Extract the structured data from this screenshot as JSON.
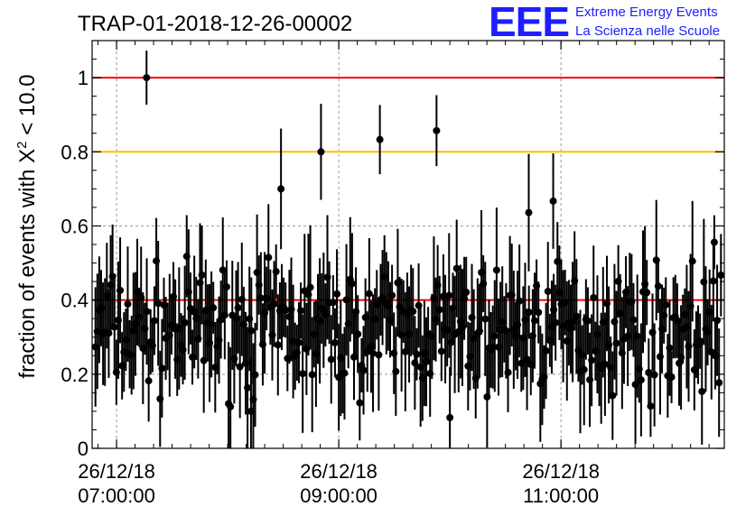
{
  "chart_data": {
    "type": "scatter",
    "title": "TRAP-01-2018-12-26-00002",
    "ylabel": {
      "pre": "fraction of events with ",
      "chi": "Χ",
      "sup": "2",
      "post": " < 10.0"
    },
    "xlabel": "",
    "x_range_hours": [
      6.78,
      12.47
    ],
    "ylim": [
      0,
      1.1
    ],
    "y_ticks": [
      {
        "value": 0,
        "label": "0"
      },
      {
        "value": 0.2,
        "label": "0.2"
      },
      {
        "value": 0.4,
        "label": "0.4"
      },
      {
        "value": 0.6,
        "label": "0.6"
      },
      {
        "value": 0.8,
        "label": "0.8"
      },
      {
        "value": 1.0,
        "label": "1"
      }
    ],
    "x_ticks": [
      {
        "value": 7.0,
        "date": "26/12/18",
        "time": "07:00:00"
      },
      {
        "value": 9.0,
        "date": "26/12/18",
        "time": "09:00:00"
      },
      {
        "value": 11.0,
        "date": "26/12/18",
        "time": "11:00:00"
      }
    ],
    "reference_lines": [
      {
        "y": 1.0,
        "color": "#ff0000"
      },
      {
        "y": 0.8,
        "color": "#ffc000"
      },
      {
        "y": 0.4,
        "color": "#ff0000"
      }
    ],
    "grid": "dotted",
    "num_points": 330,
    "highlighted_points": [
      {
        "x": 7.27,
        "y": 1.0
      },
      {
        "x": 8.84,
        "y": 0.8
      },
      {
        "x": 9.37,
        "y": 0.833
      },
      {
        "x": 9.88,
        "y": 0.857
      },
      {
        "x": 8.48,
        "y": 0.7
      },
      {
        "x": 10.93,
        "y": 0.667
      },
      {
        "x": 10.71,
        "y": 0.636
      },
      {
        "x": 12.38,
        "y": 0.556
      },
      {
        "x": 8.21,
        "y": 0.1
      },
      {
        "x": 10.0,
        "y": 0.083
      }
    ],
    "typical_y_range": [
      0.08,
      0.56
    ],
    "typical_y_mean": 0.3
  },
  "logo": {
    "text": "EEE",
    "line1": "Extreme Energy Events",
    "line2": "La Scienza nelle Scuole"
  }
}
